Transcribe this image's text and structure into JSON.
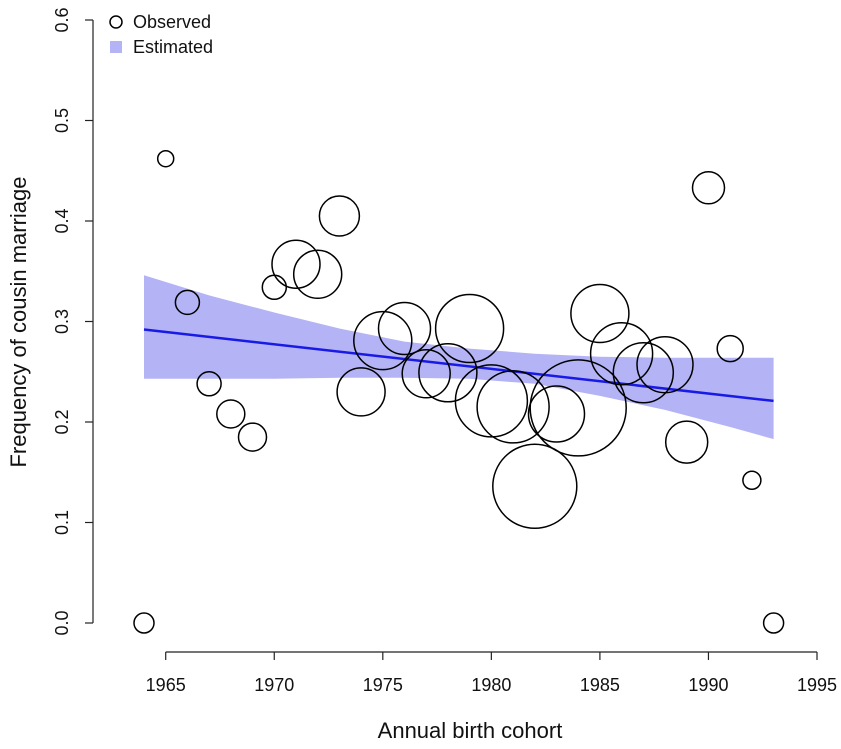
{
  "chart_data": {
    "type": "scatter",
    "xlabel": "Annual birth cohort",
    "ylabel": "Frequency of cousin marriage",
    "xlim": [
      1964,
      1995
    ],
    "ylim": [
      0.0,
      0.6
    ],
    "x_ticks": [
      1965,
      1970,
      1975,
      1980,
      1985,
      1990,
      1995
    ],
    "y_ticks": [
      "0.0",
      "0.1",
      "0.2",
      "0.3",
      "0.4",
      "0.5",
      "0.6"
    ],
    "legend": {
      "position": "top-left",
      "observed_label": "Observed",
      "estimated_label": "Estimated"
    },
    "colors": {
      "observed": "#000000",
      "line": "#1a1ae6",
      "band": "#b3b3f5"
    },
    "observed": [
      {
        "x": 1964,
        "y": 0.0,
        "size": 1.0
      },
      {
        "x": 1965,
        "y": 0.462,
        "size": 0.8
      },
      {
        "x": 1966,
        "y": 0.319,
        "size": 1.2
      },
      {
        "x": 1967,
        "y": 0.238,
        "size": 1.2
      },
      {
        "x": 1968,
        "y": 0.208,
        "size": 1.4
      },
      {
        "x": 1969,
        "y": 0.185,
        "size": 1.4
      },
      {
        "x": 1970,
        "y": 0.334,
        "size": 1.2
      },
      {
        "x": 1971,
        "y": 0.357,
        "size": 2.4
      },
      {
        "x": 1972,
        "y": 0.347,
        "size": 2.4
      },
      {
        "x": 1973,
        "y": 0.405,
        "size": 2.0
      },
      {
        "x": 1974,
        "y": 0.23,
        "size": 2.4
      },
      {
        "x": 1975,
        "y": 0.281,
        "size": 2.9
      },
      {
        "x": 1976,
        "y": 0.293,
        "size": 2.6
      },
      {
        "x": 1977,
        "y": 0.248,
        "size": 2.4
      },
      {
        "x": 1978,
        "y": 0.249,
        "size": 2.9
      },
      {
        "x": 1979,
        "y": 0.293,
        "size": 3.4
      },
      {
        "x": 1980,
        "y": 0.221,
        "size": 3.6
      },
      {
        "x": 1981,
        "y": 0.215,
        "size": 3.6
      },
      {
        "x": 1982,
        "y": 0.136,
        "size": 4.2
      },
      {
        "x": 1983,
        "y": 0.208,
        "size": 2.8
      },
      {
        "x": 1984,
        "y": 0.214,
        "size": 4.8
      },
      {
        "x": 1985,
        "y": 0.308,
        "size": 2.9
      },
      {
        "x": 1986,
        "y": 0.268,
        "size": 3.1
      },
      {
        "x": 1987,
        "y": 0.249,
        "size": 3.0
      },
      {
        "x": 1988,
        "y": 0.257,
        "size": 2.8
      },
      {
        "x": 1989,
        "y": 0.18,
        "size": 2.1
      },
      {
        "x": 1990,
        "y": 0.433,
        "size": 1.6
      },
      {
        "x": 1991,
        "y": 0.273,
        "size": 1.3
      },
      {
        "x": 1992,
        "y": 0.142,
        "size": 0.9
      },
      {
        "x": 1993,
        "y": 0.0,
        "size": 1.0
      }
    ],
    "estimated": {
      "x": [
        1964,
        1993
      ],
      "y": [
        0.292,
        0.221
      ]
    },
    "band": [
      {
        "x": 1964,
        "lower": 0.243,
        "upper": 0.346
      },
      {
        "x": 1967,
        "lower": 0.243,
        "upper": 0.326
      },
      {
        "x": 1970,
        "lower": 0.243,
        "upper": 0.309
      },
      {
        "x": 1973,
        "lower": 0.244,
        "upper": 0.293
      },
      {
        "x": 1976,
        "lower": 0.244,
        "upper": 0.28
      },
      {
        "x": 1979,
        "lower": 0.243,
        "upper": 0.273
      },
      {
        "x": 1982,
        "lower": 0.238,
        "upper": 0.268
      },
      {
        "x": 1985,
        "lower": 0.226,
        "upper": 0.265
      },
      {
        "x": 1988,
        "lower": 0.212,
        "upper": 0.264
      },
      {
        "x": 1991,
        "lower": 0.195,
        "upper": 0.264
      },
      {
        "x": 1993,
        "lower": 0.183,
        "upper": 0.264
      }
    ]
  }
}
